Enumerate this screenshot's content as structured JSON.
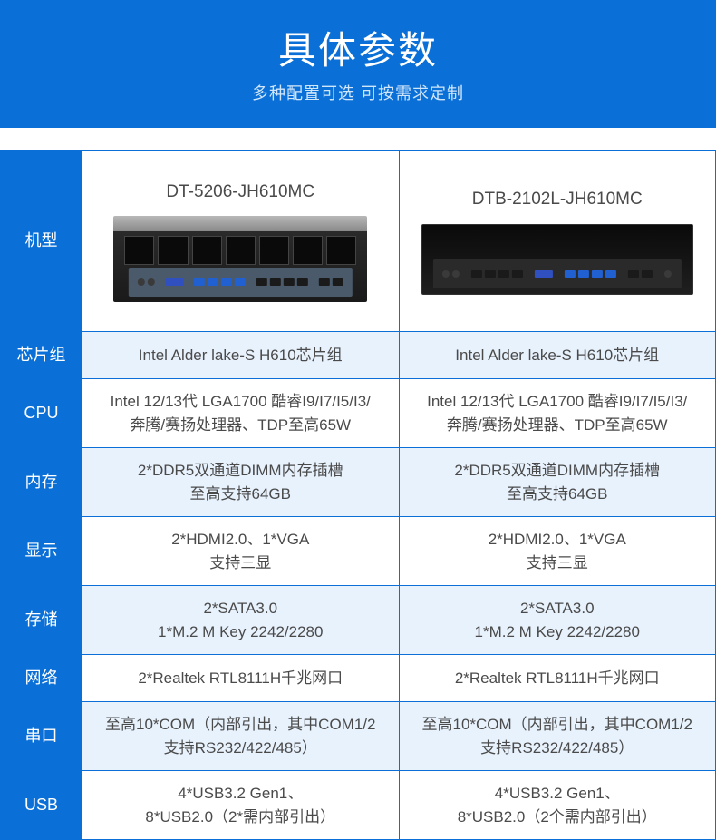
{
  "header": {
    "title": "具体参数",
    "subtitle": "多种配置可选 可按需求定制",
    "bg_color": "#0a6fd6",
    "title_color": "#ffffff",
    "subtitle_color": "#cfe6fb"
  },
  "table": {
    "border_color": "#0a6fd6",
    "label_bg": "#0a6fd6",
    "label_color": "#ffffff",
    "row_alt_bg": "#e8f2fd",
    "row_bg": "#ffffff",
    "text_color": "#4a4a4a",
    "rows": [
      {
        "label": "机型",
        "type": "model"
      },
      {
        "label": "芯片组",
        "col1": "Intel Alder lake-S H610芯片组",
        "col2": "Intel Alder lake-S H610芯片组",
        "alt": true
      },
      {
        "label": "CPU",
        "col1": "Intel 12/13代 LGA1700 酷睿I9/I7/I5/I3/\n奔腾/赛扬处理器、TDP至高65W",
        "col2": "Intel 12/13代 LGA1700 酷睿I9/I7/I5/I3/\n奔腾/赛扬处理器、TDP至高65W",
        "alt": false
      },
      {
        "label": "内存",
        "col1": "2*DDR5双通道DIMM内存插槽\n至高支持64GB",
        "col2": "2*DDR5双通道DIMM内存插槽\n至高支持64GB",
        "alt": true
      },
      {
        "label": "显示",
        "col1": "2*HDMI2.0、1*VGA\n支持三显",
        "col2": "2*HDMI2.0、1*VGA\n支持三显",
        "alt": false
      },
      {
        "label": "存储",
        "col1": "2*SATA3.0\n1*M.2 M Key 2242/2280",
        "col2": "2*SATA3.0\n1*M.2 M Key 2242/2280",
        "alt": true
      },
      {
        "label": "网络",
        "col1": "2*Realtek RTL8111H千兆网口",
        "col2": "2*Realtek RTL8111H千兆网口",
        "alt": false
      },
      {
        "label": "串口",
        "col1": "至高10*COM（内部引出，其中COM1/2\n支持RS232/422/485）",
        "col2": "至高10*COM（内部引出，其中COM1/2\n支持RS232/422/485）",
        "alt": true
      },
      {
        "label": "USB",
        "col1": "4*USB3.2 Gen1、\n8*USB2.0（2*需内部引出）",
        "col2": "4*USB3.2 Gen1、\n8*USB2.0（2个需内部引出）",
        "alt": false
      }
    ],
    "models": {
      "col1_name": "DT-5206-JH610MC",
      "col2_name": "DTB-2102L-JH610MC"
    }
  }
}
